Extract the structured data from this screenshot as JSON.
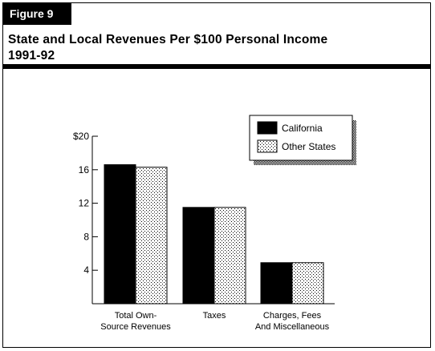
{
  "figure_label": "Figure 9",
  "title_line1": "State and Local Revenues Per $100 Personal Income",
  "title_line2": "1991-92",
  "colors": {
    "california": "#000000",
    "other_states": "stipple-gray"
  },
  "chart_data": {
    "type": "bar",
    "categories": [
      [
        "Total Own-",
        "Source Revenues"
      ],
      [
        "Taxes"
      ],
      [
        "Charges, Fees",
        "And Miscellaneous"
      ]
    ],
    "series": [
      {
        "name": "California",
        "values": [
          16.6,
          11.5,
          4.9
        ]
      },
      {
        "name": "Other States",
        "values": [
          16.3,
          11.5,
          4.9
        ]
      }
    ],
    "ylim": [
      0,
      20
    ],
    "yticks": [
      "4",
      "8",
      "12",
      "16",
      "$20"
    ],
    "ytick_values": [
      4,
      8,
      12,
      16,
      20
    ],
    "legend": {
      "placement": "top-right",
      "entries": [
        "California",
        "Other States"
      ]
    }
  }
}
